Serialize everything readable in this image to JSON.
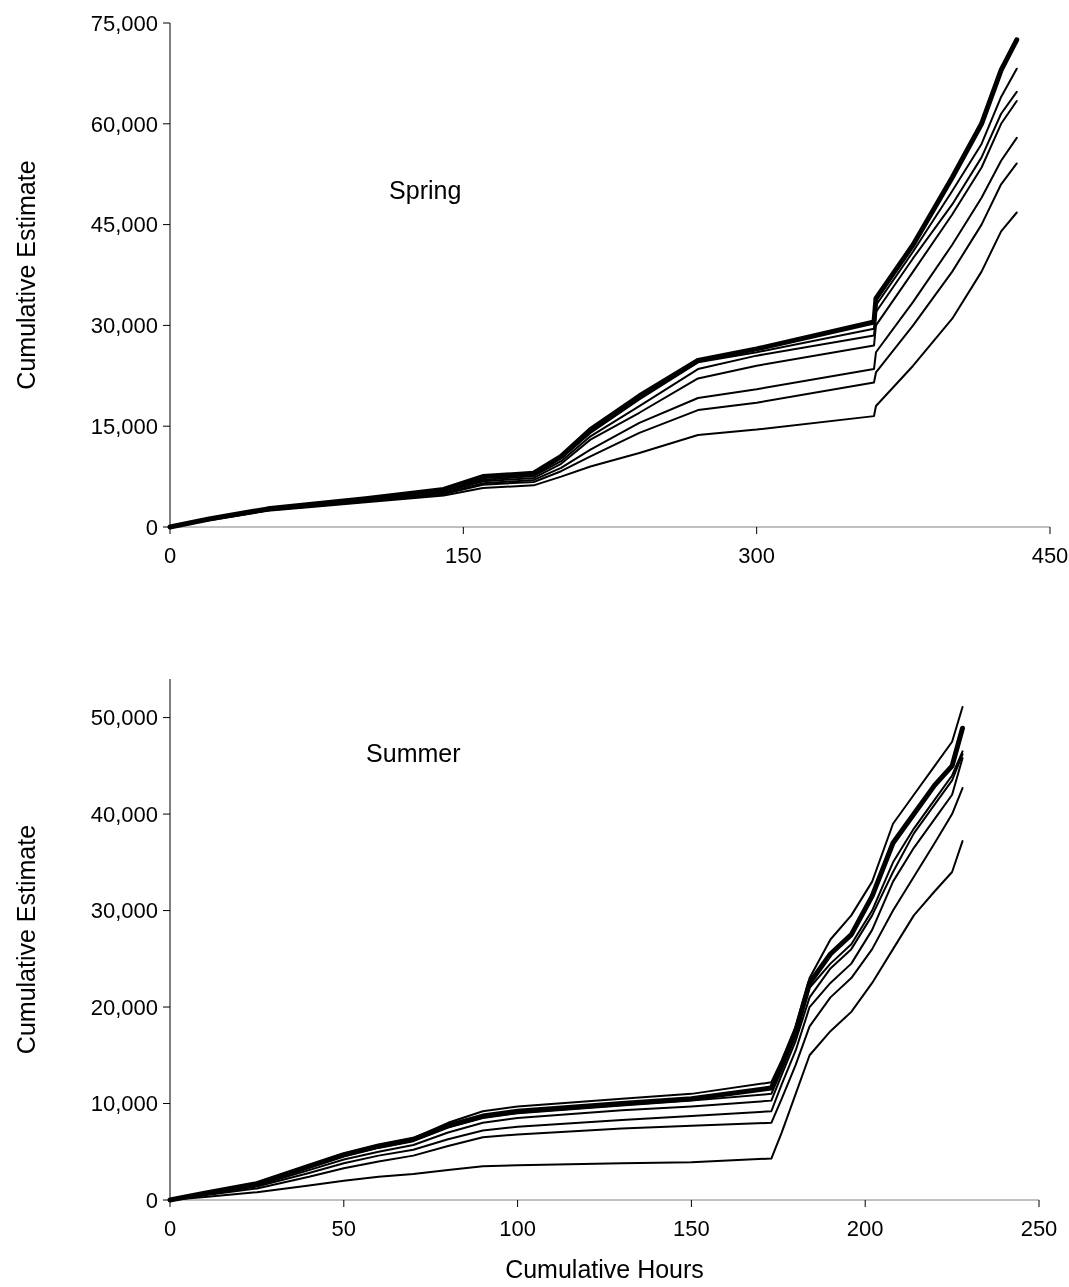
{
  "chart_data": [
    {
      "type": "line",
      "ylabel": "Cumulative Estimate",
      "annotations": [
        "Spring"
      ],
      "x": [
        0,
        20,
        50,
        100,
        140,
        160,
        186,
        200,
        215,
        240,
        270,
        300,
        360,
        361,
        380,
        400,
        415,
        425,
        433
      ],
      "series": [
        {
          "color": "#000000",
          "values": [
            0,
            1200,
            2700,
            4200,
            5600,
            7500,
            8000,
            10500,
            14500,
            19500,
            24800,
            26500,
            30500,
            34000,
            42000,
            52000,
            60000,
            68000,
            72500
          ]
        },
        {
          "color": "#000000",
          "values": [
            0,
            1200,
            2700,
            4100,
            5400,
            7300,
            7800,
            10200,
            14000,
            19000,
            24500,
            26000,
            29500,
            33000,
            41000,
            50000,
            57000,
            64000,
            68200
          ]
        },
        {
          "color": "#000000",
          "values": [
            0,
            1200,
            2600,
            4000,
            5300,
            7000,
            7600,
            9800,
            13500,
            18000,
            23500,
            25500,
            28500,
            32000,
            40000,
            48000,
            55000,
            61500,
            64750
          ]
        },
        {
          "color": "#000000",
          "values": [
            0,
            1200,
            2600,
            4000,
            5200,
            6800,
            7300,
            9400,
            13000,
            17000,
            22100,
            24000,
            27000,
            30000,
            38000,
            46500,
            53500,
            60000,
            63400
          ]
        },
        {
          "color": "#000000",
          "values": [
            0,
            1100,
            2500,
            3900,
            5000,
            6500,
            7000,
            8800,
            11500,
            15500,
            19200,
            20500,
            23500,
            26000,
            33500,
            42000,
            49000,
            54500,
            57900
          ]
        },
        {
          "color": "#000000",
          "values": [
            0,
            1100,
            2500,
            3800,
            4900,
            6300,
            6700,
            8300,
            10500,
            14000,
            17400,
            18500,
            21500,
            23000,
            30000,
            38000,
            45000,
            51000,
            54100
          ]
        },
        {
          "color": "#000000",
          "values": [
            0,
            1000,
            2400,
            3700,
            4700,
            5800,
            6200,
            7500,
            9000,
            11000,
            13700,
            14500,
            16500,
            18000,
            24000,
            31000,
            38000,
            44000,
            46800
          ]
        }
      ],
      "xlim": [
        0,
        450
      ],
      "xticks": [
        0,
        150,
        300,
        450
      ],
      "ylim": [
        0,
        75000
      ],
      "yticks": [
        0,
        {
          "value": 15000,
          "label": "15,000"
        },
        {
          "value": 30000,
          "label": "30,000"
        },
        {
          "value": 45000,
          "label": "45,000"
        },
        {
          "value": 60000,
          "label": "60,000"
        },
        {
          "value": 75000,
          "label": "75,000"
        }
      ],
      "grid": false,
      "marker": "none",
      "line_style": "solid"
    },
    {
      "type": "line",
      "xlabel": "Cumulative Hours",
      "ylabel": "Cumulative Estimate",
      "annotations": [
        "Summer"
      ],
      "x": [
        0,
        10,
        25,
        40,
        50,
        60,
        70,
        80,
        90,
        100,
        130,
        150,
        173,
        176,
        180,
        184,
        190,
        196,
        202,
        208,
        214,
        220,
        225,
        228
      ],
      "series": [
        {
          "color": "#000000",
          "values": [
            0,
            700,
            1700,
            3500,
            4700,
            5600,
            6300,
            7700,
            8700,
            9200,
            10000,
            10500,
            11600,
            14000,
            17500,
            22500,
            25500,
            27500,
            31500,
            37000,
            40000,
            43000,
            45000,
            48900
          ]
        },
        {
          "color": "#000000",
          "values": [
            0,
            700,
            1700,
            3500,
            4800,
            5700,
            6400,
            8000,
            9200,
            9700,
            10500,
            11000,
            12200,
            14500,
            18000,
            23000,
            27000,
            29500,
            33000,
            39000,
            42000,
            45000,
            47500,
            51100
          ]
        },
        {
          "color": "#000000",
          "values": [
            0,
            700,
            1600,
            3300,
            4500,
            5400,
            6100,
            7500,
            8500,
            9000,
            9800,
            10300,
            11000,
            13500,
            17000,
            22000,
            24500,
            26500,
            30000,
            35000,
            38500,
            41500,
            44000,
            46500
          ]
        },
        {
          "color": "#000000",
          "values": [
            0,
            600,
            1500,
            3100,
            4200,
            5000,
            5700,
            7000,
            8000,
            8500,
            9300,
            9700,
            10300,
            13000,
            16500,
            21000,
            24000,
            26000,
            29500,
            34000,
            38000,
            41000,
            43500,
            46200
          ]
        },
        {
          "color": "#000000",
          "values": [
            0,
            600,
            1400,
            2800,
            3800,
            4600,
            5200,
            6300,
            7200,
            7600,
            8300,
            8700,
            9200,
            12000,
            15500,
            20000,
            22500,
            24500,
            28000,
            33000,
            36500,
            39500,
            42000,
            45800
          ]
        },
        {
          "color": "#000000",
          "values": [
            0,
            500,
            1200,
            2400,
            3300,
            4000,
            4600,
            5600,
            6500,
            6800,
            7400,
            7700,
            8000,
            10500,
            14000,
            18000,
            21000,
            23000,
            26000,
            30000,
            33500,
            37000,
            40000,
            42700
          ]
        },
        {
          "color": "#000000",
          "values": [
            0,
            300,
            800,
            1500,
            2000,
            2400,
            2700,
            3100,
            3500,
            3600,
            3800,
            3900,
            4300,
            7000,
            11000,
            15000,
            17500,
            19500,
            22500,
            26000,
            29500,
            32000,
            34000,
            37200
          ]
        }
      ],
      "xlim": [
        0,
        250
      ],
      "xticks": [
        0,
        50,
        100,
        150,
        200,
        250
      ],
      "ylim": [
        0,
        54000
      ],
      "yticks": [
        0,
        {
          "value": 10000,
          "label": "10,000"
        },
        {
          "value": 20000,
          "label": "20,000"
        },
        {
          "value": 30000,
          "label": "30,000"
        },
        {
          "value": 40000,
          "label": "40,000"
        },
        {
          "value": 50000,
          "label": "50,000"
        }
      ],
      "grid": false,
      "marker": "none",
      "line_style": "solid"
    }
  ]
}
